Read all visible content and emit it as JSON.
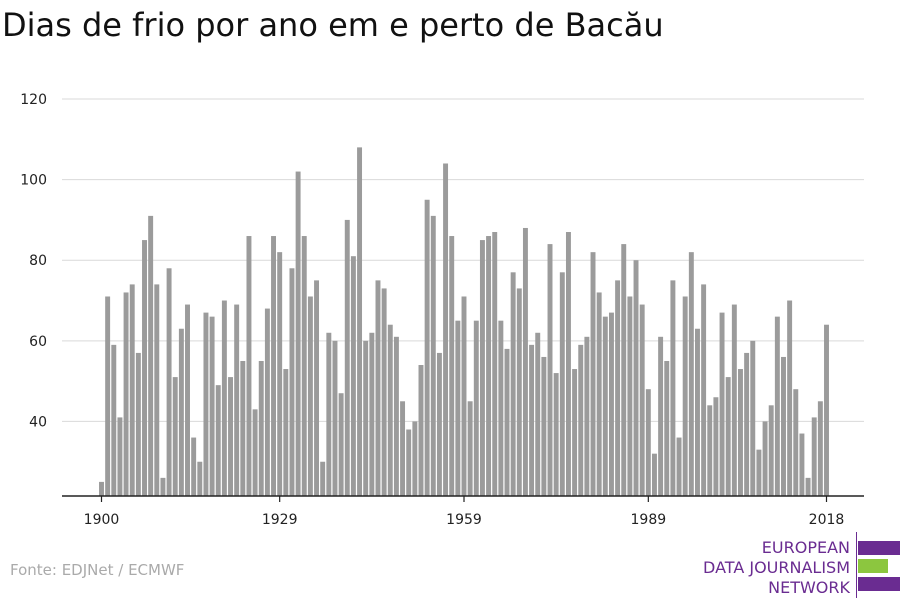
{
  "chart_data": {
    "type": "bar",
    "title": "Dias de frio por ano em e perto de Bacău",
    "x": [
      1900,
      1901,
      1902,
      1903,
      1904,
      1905,
      1906,
      1907,
      1908,
      1909,
      1910,
      1911,
      1912,
      1913,
      1914,
      1915,
      1916,
      1917,
      1918,
      1919,
      1920,
      1921,
      1922,
      1923,
      1924,
      1925,
      1926,
      1927,
      1928,
      1929,
      1930,
      1931,
      1932,
      1933,
      1934,
      1935,
      1936,
      1937,
      1938,
      1939,
      1940,
      1941,
      1942,
      1943,
      1944,
      1945,
      1946,
      1947,
      1948,
      1949,
      1950,
      1951,
      1952,
      1953,
      1954,
      1955,
      1956,
      1957,
      1958,
      1959,
      1960,
      1961,
      1962,
      1963,
      1964,
      1965,
      1966,
      1967,
      1968,
      1969,
      1970,
      1971,
      1972,
      1973,
      1974,
      1975,
      1976,
      1977,
      1978,
      1979,
      1980,
      1981,
      1982,
      1983,
      1984,
      1985,
      1986,
      1987,
      1988,
      1989,
      1990,
      1991,
      1992,
      1993,
      1994,
      1995,
      1996,
      1997,
      1998,
      1999,
      2000,
      2001,
      2002,
      2003,
      2004,
      2005,
      2006,
      2007,
      2008,
      2009,
      2010,
      2011,
      2012,
      2013,
      2014,
      2015,
      2016,
      2017,
      2018
    ],
    "values": [
      25,
      71,
      59,
      41,
      72,
      74,
      57,
      85,
      91,
      74,
      26,
      78,
      51,
      63,
      69,
      36,
      30,
      67,
      66,
      49,
      70,
      51,
      69,
      55,
      86,
      43,
      55,
      68,
      86,
      82,
      53,
      78,
      102,
      86,
      71,
      75,
      30,
      62,
      60,
      47,
      90,
      81,
      108,
      60,
      62,
      75,
      73,
      64,
      61,
      45,
      38,
      40,
      54,
      95,
      91,
      57,
      104,
      86,
      65,
      71,
      45,
      65,
      85,
      86,
      87,
      65,
      58,
      77,
      73,
      88,
      59,
      62,
      56,
      84,
      52,
      77,
      87,
      53,
      59,
      61,
      82,
      72,
      66,
      67,
      75,
      84,
      71,
      80,
      69,
      48,
      32,
      61,
      55,
      75,
      36,
      71,
      82,
      63,
      74,
      44,
      46,
      67,
      51,
      69,
      53,
      57,
      60,
      33,
      40,
      44,
      66,
      56,
      70,
      48,
      37,
      26,
      41,
      45,
      64
    ],
    "x_ticks": [
      "1900",
      "1929",
      "1959",
      "1989",
      "2018"
    ],
    "y_ticks": [
      "120",
      "100",
      "80",
      "60",
      "40"
    ],
    "ylim": [
      21.5,
      120
    ],
    "grid": true,
    "bar_color": "#9b9b9b",
    "grid_color": "#d9d9d9"
  },
  "source": "Fonte: EDJNet / ECMWF",
  "logo": {
    "lines": [
      "EUROPEAN",
      "DATA JOURNALISM",
      "NETWORK"
    ],
    "purple": "#6a2c91",
    "green": "#8cc63f"
  }
}
